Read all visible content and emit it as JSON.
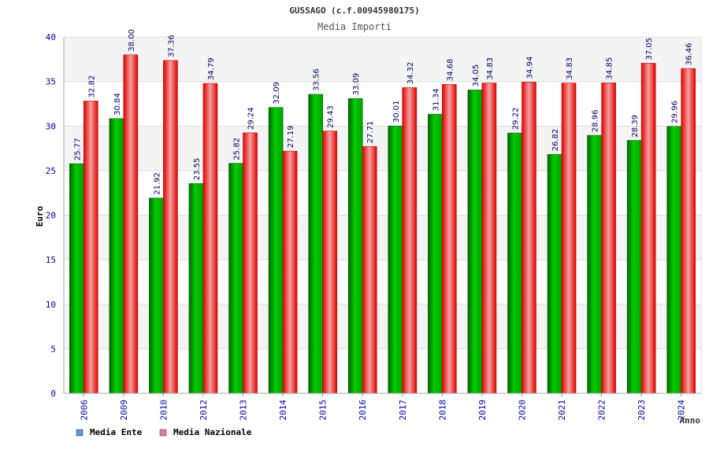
{
  "chart_data": {
    "type": "bar",
    "title": "GUSSAGO (c.f.00945980175)",
    "subtitle": "Media Importi",
    "xlabel": "Anno",
    "ylabel": "Euro",
    "ylim": [
      0,
      40
    ],
    "yticks": [
      "0",
      "5",
      "10",
      "15",
      "20",
      "25",
      "30",
      "35",
      "40"
    ],
    "categories": [
      "2006",
      "2009",
      "2010",
      "2012",
      "2013",
      "2014",
      "2015",
      "2016",
      "2017",
      "2018",
      "2019",
      "2020",
      "2021",
      "2022",
      "2023",
      "2024"
    ],
    "series": [
      {
        "name": "Media Ente",
        "legend_color": "#5b9bd5",
        "values": [
          25.77,
          30.84,
          21.92,
          23.55,
          25.82,
          32.09,
          33.56,
          33.09,
          30.01,
          31.34,
          34.05,
          29.22,
          26.82,
          28.96,
          28.39,
          29.96
        ],
        "labels": [
          "25.77",
          "30.84",
          "21.92",
          "23.55",
          "25.82",
          "32.09",
          "33.56",
          "33.09",
          "30.01",
          "31.34",
          "34.05",
          "29.22",
          "26.82",
          "28.96",
          "28.39",
          "29.96"
        ]
      },
      {
        "name": "Media Nazionale",
        "legend_color": "#e07aa8",
        "values": [
          32.82,
          38.0,
          37.36,
          34.79,
          29.24,
          27.19,
          29.43,
          27.71,
          34.32,
          34.68,
          34.83,
          34.94,
          34.83,
          34.85,
          37.05,
          36.46
        ],
        "labels": [
          "32.82",
          "38.00",
          "37.36",
          "34.79",
          "29.24",
          "27.19",
          "29.43",
          "27.71",
          "34.32",
          "34.68",
          "34.83",
          "34.94",
          "34.83",
          "34.85",
          "37.05",
          "36.46"
        ]
      }
    ],
    "grid": true,
    "legend": "bottom-left"
  }
}
